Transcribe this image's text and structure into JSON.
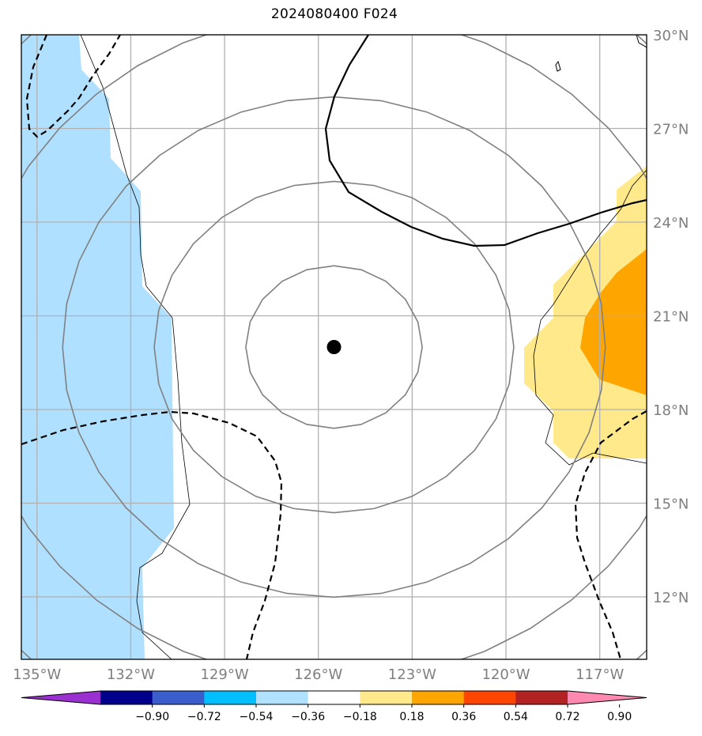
{
  "title": "2024080400 F024",
  "map": {
    "lon_range": [
      -135.5,
      -115.5
    ],
    "lat_range": [
      10,
      30
    ],
    "center_marker": {
      "lon": -125.5,
      "lat": 20
    },
    "lat_labels": [
      {
        "lat": 30,
        "label": "30°N"
      },
      {
        "lat": 27,
        "label": "27°N"
      },
      {
        "lat": 24,
        "label": "24°N"
      },
      {
        "lat": 21,
        "label": "21°N"
      },
      {
        "lat": 18,
        "label": "18°N"
      },
      {
        "lat": 15,
        "label": "15°N"
      },
      {
        "lat": 12,
        "label": "12°N"
      }
    ],
    "lon_labels": [
      {
        "lon": -135,
        "label": "135°W"
      },
      {
        "lon": -132,
        "label": "132°W"
      },
      {
        "lon": -129,
        "label": "129°W"
      },
      {
        "lon": -126,
        "label": "126°W"
      },
      {
        "lon": -123,
        "label": "123°W"
      },
      {
        "lon": -120,
        "label": "120°W"
      },
      {
        "lon": -117,
        "label": "117°W"
      }
    ],
    "range_ring_degrees": [
      2.6,
      5.3,
      8,
      10.7,
      13.4
    ],
    "colors": {
      "grid": "#b0b0b0",
      "rings": "#808080",
      "contour": "#000000",
      "negative_fill": "#b0e0ff",
      "pale_yellow": "#ffe98a",
      "orange": "#ffa500"
    }
  },
  "colorbar": {
    "colors": [
      "#9b30d0",
      "#00008b",
      "#3a5fcd",
      "#00bfff",
      "#b0e2ff",
      "#ffffff",
      "#ffe98a",
      "#ffa500",
      "#ff4500",
      "#b22222",
      "#ff89b0"
    ],
    "tick_labels": [
      "−0.90",
      "−0.72",
      "−0.54",
      "−0.36",
      "−0.18",
      "0.18",
      "0.36",
      "0.54",
      "0.72",
      "0.90"
    ]
  }
}
